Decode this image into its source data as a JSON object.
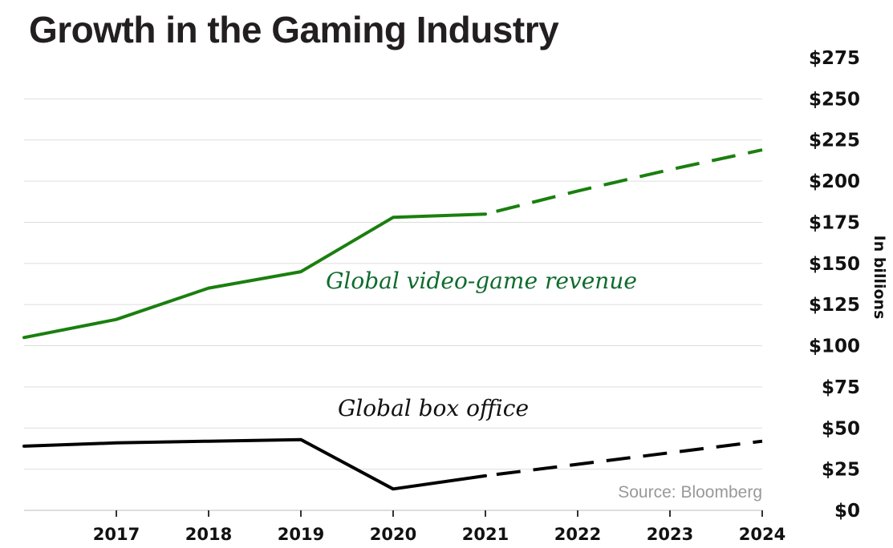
{
  "chart_data": {
    "type": "line",
    "title": "Growth in the Gaming Industry",
    "ylabel": "In billions",
    "source": "Source: Bloomberg",
    "x": [
      2016,
      2017,
      2018,
      2019,
      2020,
      2021,
      2022,
      2023,
      2024
    ],
    "x_tick_labels": [
      "2017",
      "2018",
      "2019",
      "2020",
      "2021",
      "2022",
      "2023",
      "2024"
    ],
    "y_tick_labels": [
      "$0",
      "$25",
      "$50",
      "$75",
      "$100",
      "$125",
      "$150",
      "$175",
      "$200",
      "$225",
      "$250",
      "$275"
    ],
    "y_ticks": [
      0,
      25,
      50,
      75,
      100,
      125,
      150,
      175,
      200,
      225,
      250,
      275
    ],
    "ylim": [
      0,
      275
    ],
    "xlim": [
      2016,
      2024
    ],
    "grid": "horizontal",
    "y_axis_side": "right",
    "series": [
      {
        "label": "Global video-game revenue",
        "color": "#1a7f0f",
        "label_color": "#0f6b2e",
        "actual": [
          [
            2016,
            105
          ],
          [
            2017,
            116
          ],
          [
            2018,
            135
          ],
          [
            2019,
            145
          ],
          [
            2020,
            178
          ],
          [
            2021,
            180
          ]
        ],
        "forecast": [
          [
            2021,
            180
          ],
          [
            2022,
            194
          ],
          [
            2023,
            207
          ],
          [
            2024,
            219
          ]
        ]
      },
      {
        "label": "Global box office",
        "color": "#000000",
        "label_color": "#111111",
        "actual": [
          [
            2016,
            39
          ],
          [
            2017,
            41
          ],
          [
            2018,
            42
          ],
          [
            2019,
            43
          ],
          [
            2020,
            13
          ],
          [
            2021,
            21
          ]
        ],
        "forecast": [
          [
            2021,
            21
          ],
          [
            2022,
            28
          ],
          [
            2023,
            35
          ],
          [
            2024,
            42
          ]
        ]
      }
    ]
  }
}
